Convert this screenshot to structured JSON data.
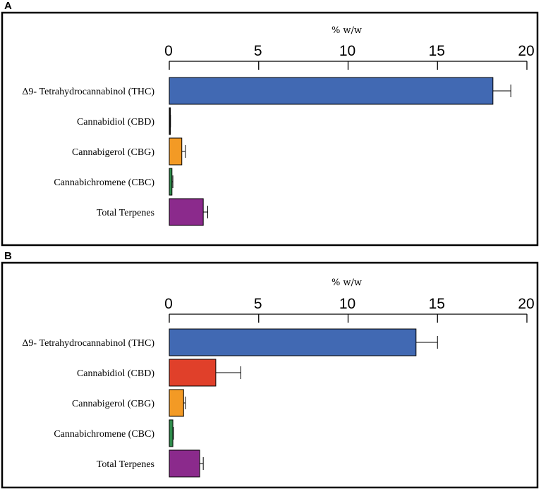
{
  "chart_data": [
    {
      "panel": "A",
      "type": "bar",
      "orientation": "horizontal",
      "xlabel": "% w/w",
      "xlim": [
        0,
        20
      ],
      "ticks": [
        "0",
        "5",
        "10",
        "15",
        "20"
      ],
      "tick_values": [
        0,
        5,
        10,
        15,
        20
      ],
      "categories": [
        "Δ9- Tetrahydrocannabinol (THC)",
        "Cannabidiol (CBD)",
        "Cannabigerol (CBG)",
        "Cannabichromene (CBC)",
        "Total Terpenes"
      ],
      "values": [
        18.1,
        0.05,
        0.7,
        0.15,
        1.9
      ],
      "errors": [
        1.0,
        0.02,
        0.2,
        0.05,
        0.25
      ],
      "colors": [
        "#4169b3",
        "#111111",
        "#f39a25",
        "#2e8b4a",
        "#8b2a8c"
      ]
    },
    {
      "panel": "B",
      "type": "bar",
      "orientation": "horizontal",
      "xlabel": "% w/w",
      "xlim": [
        0,
        20
      ],
      "ticks": [
        "0",
        "5",
        "10",
        "15",
        "20"
      ],
      "tick_values": [
        0,
        5,
        10,
        15,
        20
      ],
      "categories": [
        "Δ9- Tetrahydrocannabinol (THC)",
        "Cannabidiol (CBD)",
        "Cannabigerol (CBG)",
        "Cannabichromene (CBC)",
        "Total Terpenes"
      ],
      "values": [
        13.8,
        2.6,
        0.8,
        0.2,
        1.7
      ],
      "errors": [
        1.2,
        1.4,
        0.1,
        0.03,
        0.2
      ],
      "colors": [
        "#4169b3",
        "#e0402a",
        "#f39a25",
        "#2e8b4a",
        "#8b2a8c"
      ]
    }
  ]
}
